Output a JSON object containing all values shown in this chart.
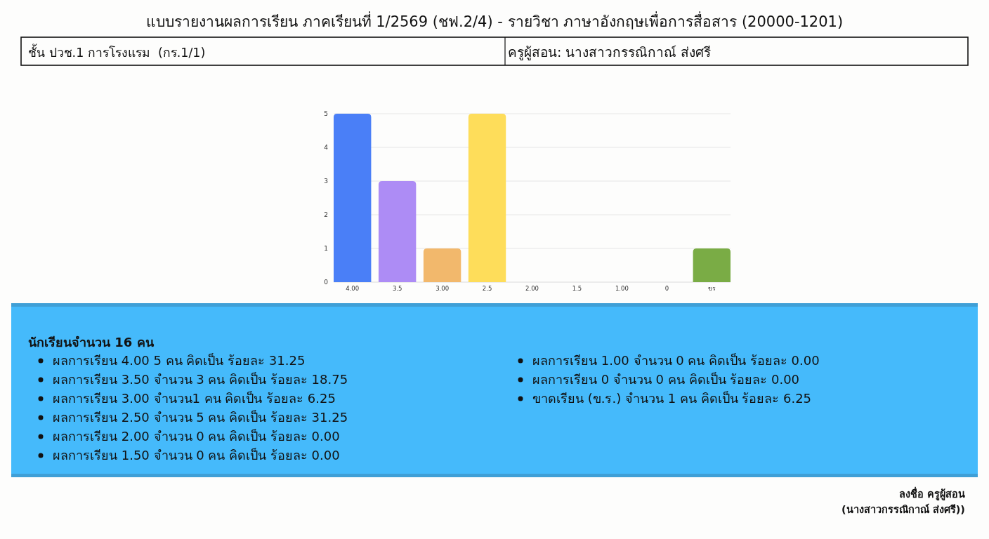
{
  "chart_data": {
    "type": "bar",
    "title": "แบบรายงานผลการเรียน ภาคเรียนที่ 1/2569 (ชฟ.2/4) - รายวิชา ภาษาอังกฤษเพื่อการสื่อสาร (20000-1201)",
    "categories": [
      "4.00",
      "3.5",
      "3.00",
      "2.5",
      "2.00",
      "1.5",
      "1.00",
      "0",
      "ขร"
    ],
    "values": [
      5,
      3,
      1,
      5,
      0,
      0,
      0,
      0,
      1
    ],
    "colors": [
      "#4a7ff7",
      "#ad8cf5",
      "#f2b86c",
      "#fedd5a",
      "#4a7ff7",
      "#ad8cf5",
      "#f2b86c",
      "#fedd5a",
      "#7aac45"
    ],
    "ylim": [
      0,
      5
    ],
    "yticks": [
      0,
      1,
      2,
      3,
      4,
      5
    ],
    "grid": "y",
    "annotations": [
      "ชั้น ปวช.1 การโรงแรม  (กร.1/1)",
      "ครูผู้สอน: นางสาวกรรณิกาณ์ ส่งศรี",
      "นักเรียนจำนวน 16 คน",
      "ผลการเรียน 4.00 5 คน คิดเป็น ร้อยละ 31.25",
      "ผลการเรียน 3.50 จำนวน 3 คน คิดเป็น ร้อยละ 18.75",
      "ผลการเรียน 3.00 จำนวน1 คน คิดเป็น ร้อยละ 6.25",
      "ผลการเรียน 2.50 จำนวน 5 คน คิดเป็น ร้อยละ 31.25",
      "ผลการเรียน 2.00 จำนวน 0 คน คิดเป็น ร้อยละ 0.00",
      "ผลการเรียน 1.50 จำนวน 0 คน คิดเป็น ร้อยละ 0.00",
      "ผลการเรียน 1.00 จำนวน 0 คน คิดเป็น ร้อยละ 0.00",
      "ผลการเรียน 0 จำนวน 0 คน คิดเป็น ร้อยละ 0.00",
      "ขาดเรียน (ข.ร.) จำนวน 1 คน คิดเป็น ร้อยละ 6.25",
      "ลงชื่อ ครูผู้สอน",
      "(นางสาวกรรณิกาณ์ ส่งศรี))"
    ]
  }
}
